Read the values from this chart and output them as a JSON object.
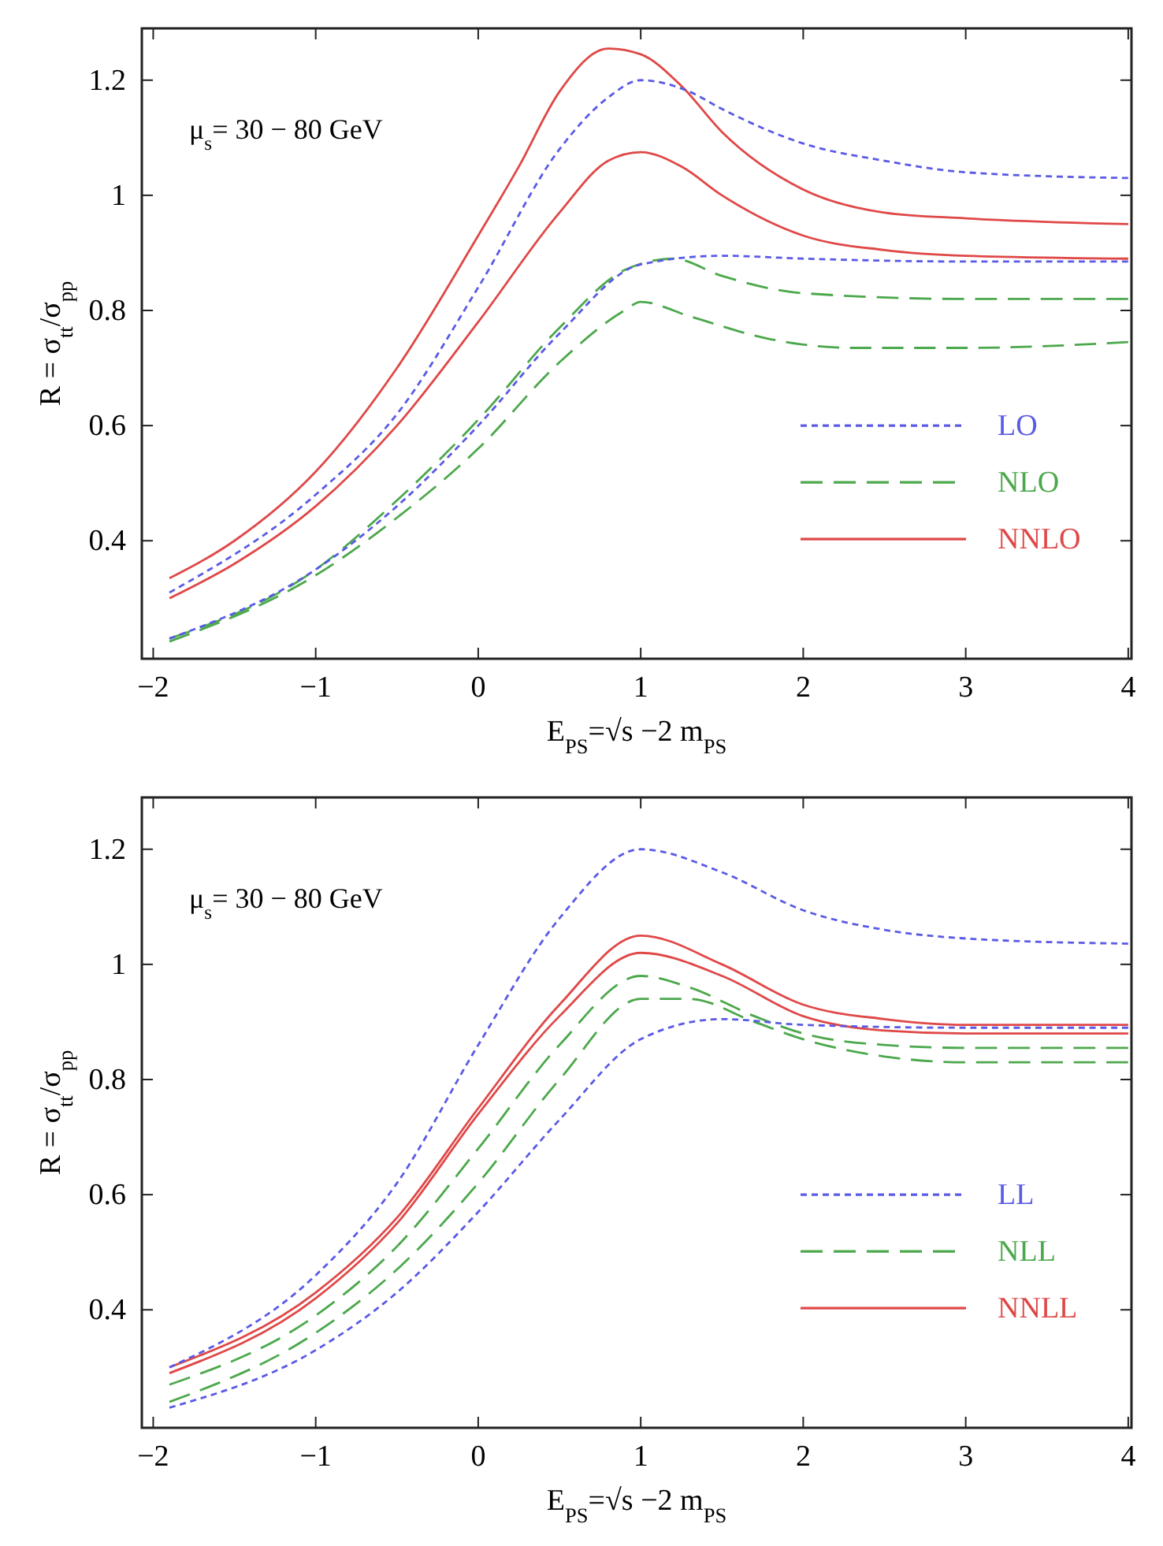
{
  "chart_data": [
    {
      "type": "line",
      "xlabel": "E$_{PS}$=√s −2 m$_{PS}$",
      "ylabel": "R = σ$_{tt}$/σ$_{pp}$",
      "annotations": [
        "μ$_{s}$= 30 − 80 GeV"
      ],
      "xlim": [
        -2.07,
        4.02
      ],
      "ylim": [
        0.195,
        1.29
      ],
      "xticks": [
        -2,
        -1,
        0,
        1,
        2,
        3,
        4
      ],
      "yticks": [
        0.4,
        0.6,
        0.8,
        1,
        1.2
      ],
      "grid": false,
      "legend": "right",
      "series": [
        {
          "name": "LO",
          "color": "#5a5ae6",
          "line_style": "dotted",
          "x": [
            -1.9,
            -1,
            -0.5,
            0,
            0.5,
            0.8,
            1,
            1.3,
            1.5,
            2,
            2.5,
            3,
            4
          ],
          "values": [
            0.31,
            0.48,
            0.62,
            0.84,
            1.08,
            1.17,
            1.2,
            1.18,
            1.15,
            1.09,
            1.06,
            1.04,
            1.03
          ]
        },
        {
          "color": "#5a5ae6",
          "line_style": "dotted",
          "x": [
            -1.9,
            -1,
            -0.5,
            0,
            0.5,
            1,
            1.5,
            2,
            3,
            4
          ],
          "values": [
            0.23,
            0.35,
            0.46,
            0.6,
            0.76,
            0.88,
            0.895,
            0.89,
            0.885,
            0.885
          ]
        },
        {
          "name": "NLO",
          "color": "#4ca84c",
          "line_style": "dashed",
          "x": [
            -1.9,
            -1,
            -0.5,
            0,
            0.5,
            0.9,
            1.2,
            1.5,
            2,
            3,
            4
          ],
          "values": [
            0.23,
            0.35,
            0.47,
            0.61,
            0.77,
            0.87,
            0.89,
            0.86,
            0.83,
            0.82,
            0.82
          ]
        },
        {
          "color": "#4ca84c",
          "line_style": "dashed",
          "x": [
            -1.9,
            -1,
            -0.5,
            0,
            0.5,
            0.9,
            1,
            1.3,
            1.8,
            2.3,
            3,
            4
          ],
          "values": [
            0.225,
            0.34,
            0.44,
            0.56,
            0.71,
            0.8,
            0.815,
            0.79,
            0.75,
            0.735,
            0.735,
            0.745
          ]
        },
        {
          "name": "NNLO",
          "color": "#e04848",
          "line_style": "solid",
          "x": [
            -1.9,
            -1.5,
            -1,
            -0.5,
            0,
            0.25,
            0.5,
            0.8,
            1,
            1.25,
            1.5,
            2,
            2.5,
            3,
            4
          ],
          "values": [
            0.335,
            0.4,
            0.52,
            0.7,
            0.93,
            1.05,
            1.18,
            1.255,
            1.245,
            1.19,
            1.11,
            1.01,
            0.97,
            0.96,
            0.95
          ]
        },
        {
          "color": "#e04848",
          "line_style": "solid",
          "x": [
            -1.9,
            -1.5,
            -1,
            -0.5,
            0,
            0.5,
            0.8,
            1,
            1.25,
            1.5,
            2,
            2.5,
            3,
            4
          ],
          "values": [
            0.3,
            0.36,
            0.46,
            0.6,
            0.78,
            0.97,
            1.06,
            1.075,
            1.05,
            1,
            0.93,
            0.905,
            0.895,
            0.89
          ]
        }
      ]
    },
    {
      "type": "line",
      "xlabel": "E$_{PS}$=√s −2 m$_{PS}$",
      "ylabel": "R = σ$_{tt}$/σ$_{pp}$",
      "annotations": [
        "μ$_{s}$= 30 − 80 GeV"
      ],
      "xlim": [
        -2.07,
        4.02
      ],
      "ylim": [
        0.195,
        1.29
      ],
      "xticks": [
        -2,
        -1,
        0,
        1,
        2,
        3,
        4
      ],
      "yticks": [
        0.4,
        0.6,
        0.8,
        1,
        1.2
      ],
      "grid": false,
      "legend": "right",
      "series": [
        {
          "name": "LL",
          "color": "#5a5ae6",
          "line_style": "dotted",
          "x": [
            -1.9,
            -1,
            -0.5,
            0,
            0.5,
            1,
            1.5,
            2,
            2.5,
            3,
            4
          ],
          "values": [
            0.3,
            0.46,
            0.62,
            0.86,
            1.08,
            1.2,
            1.16,
            1.094,
            1.06,
            1.045,
            1.036
          ]
        },
        {
          "color": "#5a5ae6",
          "line_style": "dotted",
          "x": [
            -1.9,
            -1,
            -0.5,
            0,
            0.5,
            1,
            1.5,
            2,
            3,
            4
          ],
          "values": [
            0.23,
            0.33,
            0.43,
            0.57,
            0.73,
            0.87,
            0.905,
            0.895,
            0.89,
            0.89
          ]
        },
        {
          "name": "NLL",
          "color": "#4ca84c",
          "line_style": "dashed",
          "x": [
            -1.9,
            -1,
            -0.5,
            0,
            0.5,
            1,
            1.3,
            1.7,
            2,
            2.5,
            3,
            4
          ],
          "values": [
            0.27,
            0.39,
            0.51,
            0.68,
            0.86,
            0.98,
            0.96,
            0.91,
            0.88,
            0.86,
            0.855,
            0.855
          ]
        },
        {
          "color": "#4ca84c",
          "line_style": "dashed",
          "x": [
            -1.9,
            -1,
            -0.5,
            0,
            0.5,
            1,
            1.3,
            1.7,
            2,
            2.5,
            3,
            4
          ],
          "values": [
            0.24,
            0.36,
            0.47,
            0.62,
            0.8,
            0.94,
            0.94,
            0.9,
            0.87,
            0.84,
            0.83,
            0.83
          ]
        },
        {
          "name": "NNLL",
          "color": "#e04848",
          "line_style": "solid",
          "x": [
            -1.9,
            -1,
            -0.5,
            0,
            0.5,
            1,
            1.5,
            2,
            2.5,
            3,
            4
          ],
          "values": [
            0.3,
            0.43,
            0.56,
            0.75,
            0.93,
            1.05,
            1,
            0.93,
            0.905,
            0.895,
            0.895
          ]
        },
        {
          "color": "#e04848",
          "line_style": "solid",
          "x": [
            -1.9,
            -1,
            -0.5,
            0,
            0.5,
            1,
            1.5,
            2,
            2.5,
            3,
            4
          ],
          "values": [
            0.29,
            0.42,
            0.55,
            0.74,
            0.91,
            1.02,
            0.98,
            0.91,
            0.885,
            0.88,
            0.88
          ]
        }
      ]
    }
  ]
}
